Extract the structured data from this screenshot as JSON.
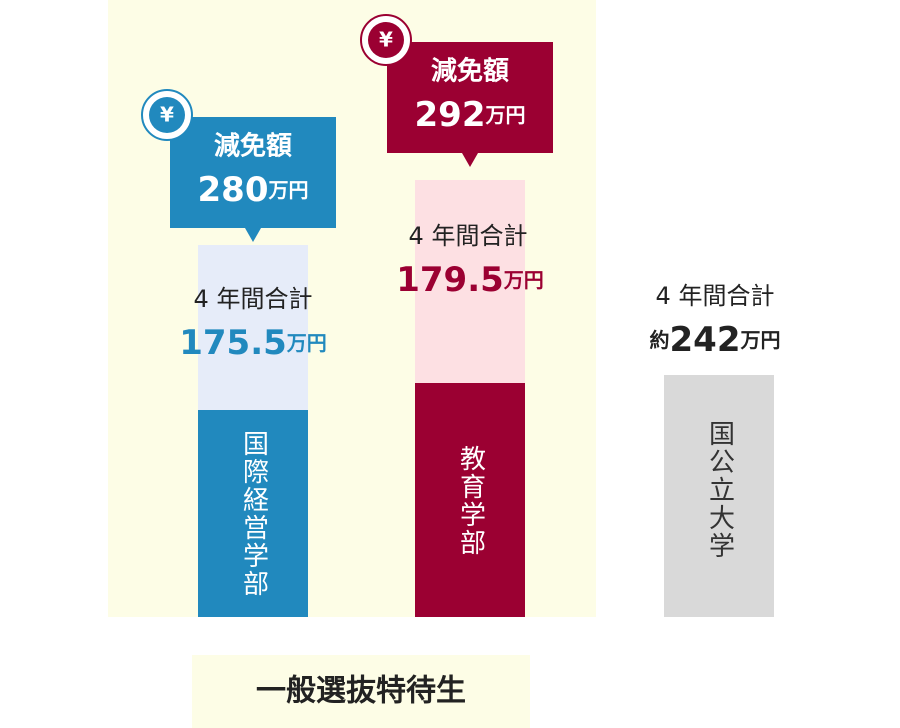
{
  "columns": [
    {
      "name": "国際経営学部",
      "total_label": "4 年間合計",
      "total": "175.5",
      "unit": "万円",
      "badge": "¥",
      "reduction_label": "減免額",
      "reduction": "280",
      "reduction_unit": "万円"
    },
    {
      "name": "教育学部",
      "total_label": "4 年間合計",
      "total": "179.5",
      "unit": "万円",
      "badge": "¥",
      "reduction_label": "減免額",
      "reduction": "292",
      "reduction_unit": "万円"
    }
  ],
  "national": {
    "name": "国公立大学",
    "total_label": "4 年間合計",
    "prefix": "約",
    "total": "242",
    "unit": "万円"
  },
  "group_label": "一般選抜特待生"
}
